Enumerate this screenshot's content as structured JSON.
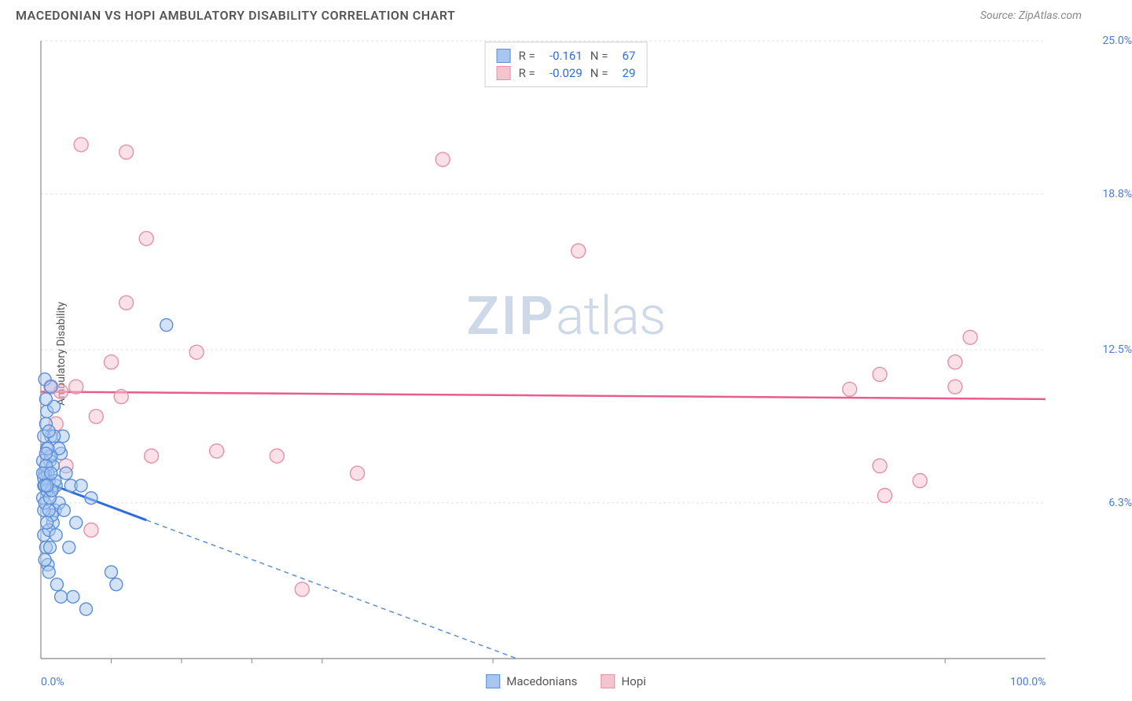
{
  "header": {
    "title": "MACEDONIAN VS HOPI AMBULATORY DISABILITY CORRELATION CHART",
    "source": "Source: ZipAtlas.com"
  },
  "watermark": {
    "zip": "ZIP",
    "atlas": "atlas"
  },
  "chart": {
    "type": "scatter",
    "y_axis_label": "Ambulatory Disability",
    "xlim": [
      0,
      100
    ],
    "ylim": [
      0,
      25
    ],
    "x_ticks": [
      {
        "pos": 0.0,
        "label": "0.0%"
      },
      {
        "pos": 100.0,
        "label": "100.0%"
      }
    ],
    "x_minor_ticks": [
      7,
      14,
      21,
      28,
      45,
      90
    ],
    "y_ticks": [
      {
        "pos": 6.3,
        "label": "6.3%"
      },
      {
        "pos": 12.5,
        "label": "12.5%"
      },
      {
        "pos": 18.8,
        "label": "18.8%"
      },
      {
        "pos": 25.0,
        "label": "25.0%"
      }
    ],
    "grid_color": "#e0e0e0",
    "axis_color": "#888888",
    "background_color": "#ffffff"
  },
  "series": {
    "macedonians": {
      "label": "Macedonians",
      "color_fill": "#a8c6f0",
      "color_stroke": "#5a8fd8",
      "fill_opacity": 0.5,
      "marker_radius": 8,
      "regression": {
        "y_start": 7.2,
        "y_end": -8.0,
        "solid_x_end": 10.5
      },
      "R": "-0.161",
      "N": "67",
      "points": [
        [
          0.2,
          6.5
        ],
        [
          0.3,
          7.0
        ],
        [
          0.4,
          7.5
        ],
        [
          0.5,
          9.5
        ],
        [
          0.6,
          10.0
        ],
        [
          0.4,
          11.3
        ],
        [
          0.8,
          7.2
        ],
        [
          1.0,
          6.8
        ],
        [
          1.2,
          5.5
        ],
        [
          1.4,
          6.0
        ],
        [
          0.3,
          5.0
        ],
        [
          0.5,
          4.5
        ],
        [
          0.7,
          3.8
        ],
        [
          1.5,
          7.0
        ],
        [
          2.0,
          8.3
        ],
        [
          2.5,
          7.5
        ],
        [
          1.8,
          6.3
        ],
        [
          1.0,
          9.0
        ],
        [
          1.3,
          10.2
        ],
        [
          0.6,
          8.5
        ],
        [
          0.9,
          8.0
        ],
        [
          1.1,
          5.8
        ],
        [
          0.4,
          4.0
        ],
        [
          0.8,
          3.5
        ],
        [
          2.2,
          9.0
        ],
        [
          3.0,
          7.0
        ],
        [
          3.5,
          5.5
        ],
        [
          4.0,
          7.0
        ],
        [
          2.8,
          4.5
        ],
        [
          3.2,
          2.5
        ],
        [
          4.5,
          2.0
        ],
        [
          5.0,
          6.5
        ],
        [
          0.2,
          8.0
        ],
        [
          0.3,
          6.0
        ],
        [
          0.9,
          4.5
        ],
        [
          1.6,
          3.0
        ],
        [
          2.0,
          2.5
        ],
        [
          7.0,
          3.5
        ],
        [
          7.5,
          3.0
        ],
        [
          12.5,
          13.5
        ],
        [
          1.0,
          11.0
        ],
        [
          0.5,
          10.5
        ],
        [
          0.3,
          9.0
        ],
        [
          0.6,
          6.8
        ],
        [
          1.2,
          7.8
        ],
        [
          1.8,
          8.5
        ],
        [
          0.8,
          5.2
        ],
        [
          0.4,
          6.3
        ],
        [
          1.5,
          5.0
        ],
        [
          2.3,
          6.0
        ],
        [
          0.7,
          7.5
        ],
        [
          1.0,
          8.2
        ],
        [
          0.5,
          7.8
        ],
        [
          0.3,
          7.3
        ],
        [
          0.9,
          6.5
        ],
        [
          1.4,
          7.2
        ],
        [
          0.6,
          5.5
        ],
        [
          0.8,
          6.0
        ],
        [
          1.1,
          6.8
        ],
        [
          0.4,
          7.0
        ],
        [
          0.7,
          8.5
        ],
        [
          1.3,
          9.0
        ],
        [
          0.5,
          8.3
        ],
        [
          0.2,
          7.5
        ],
        [
          0.8,
          9.2
        ],
        [
          1.0,
          7.5
        ],
        [
          0.6,
          7.0
        ]
      ]
    },
    "hopi": {
      "label": "Hopi",
      "color_fill": "#f5c4cf",
      "color_stroke": "#e78fa8",
      "fill_opacity": 0.5,
      "marker_radius": 9,
      "regression": {
        "y_start": 10.8,
        "y_end": 10.5
      },
      "R": "-0.029",
      "N": "29",
      "points": [
        [
          1.0,
          11.0
        ],
        [
          2.0,
          10.8
        ],
        [
          1.5,
          9.5
        ],
        [
          3.5,
          11.0
        ],
        [
          5.5,
          9.8
        ],
        [
          8.0,
          10.6
        ],
        [
          8.5,
          20.5
        ],
        [
          4.0,
          20.8
        ],
        [
          10.5,
          17.0
        ],
        [
          8.5,
          14.4
        ],
        [
          7.0,
          12.0
        ],
        [
          11.0,
          8.2
        ],
        [
          15.5,
          12.4
        ],
        [
          17.5,
          8.4
        ],
        [
          23.5,
          8.2
        ],
        [
          26.0,
          2.8
        ],
        [
          31.5,
          7.5
        ],
        [
          40.0,
          20.2
        ],
        [
          53.5,
          16.5
        ],
        [
          2.5,
          7.8
        ],
        [
          5.0,
          5.2
        ],
        [
          80.5,
          10.9
        ],
        [
          83.5,
          7.8
        ],
        [
          84.0,
          6.6
        ],
        [
          83.5,
          11.5
        ],
        [
          87.5,
          7.2
        ],
        [
          91.0,
          12.0
        ],
        [
          92.5,
          13.0
        ],
        [
          91.0,
          11.0
        ]
      ]
    }
  },
  "stat_legend": {
    "r_label": "R =",
    "n_label": "N ="
  }
}
